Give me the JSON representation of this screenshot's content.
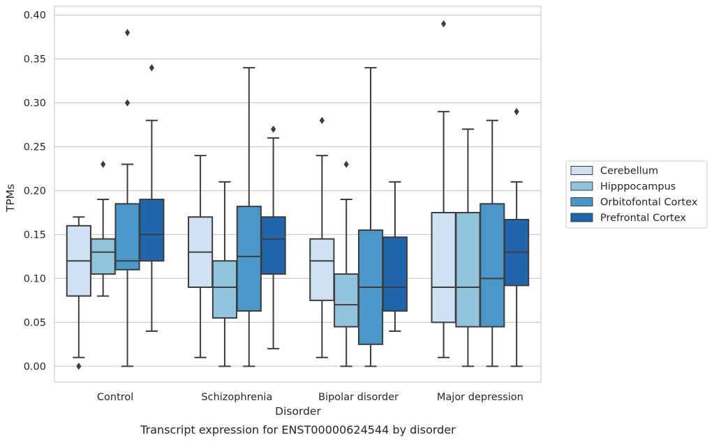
{
  "chart_data": {
    "type": "box",
    "title": "",
    "caption": "Transcript expression for ENST00000624544 by disorder",
    "xlabel": "Disorder",
    "ylabel": "TPMs",
    "ylim": [
      -0.018,
      0.41
    ],
    "yticks": [
      0.0,
      0.05,
      0.1,
      0.15,
      0.2,
      0.25,
      0.3,
      0.35,
      0.4
    ],
    "ytick_labels": [
      "0.00",
      "0.05",
      "0.10",
      "0.15",
      "0.20",
      "0.25",
      "0.30",
      "0.35",
      "0.40"
    ],
    "grid": "horizontal",
    "legend_placement": "center-right outside",
    "categories": [
      "Control",
      "Schizophrenia",
      "Bipolar disorder",
      "Major depression"
    ],
    "series": [
      {
        "name": "Cerebellum",
        "color": "#cfe1f2",
        "boxes": [
          {
            "whisker_low": 0.01,
            "q1": 0.08,
            "median": 0.12,
            "q3": 0.16,
            "whisker_high": 0.17,
            "outliers": [
              0.0
            ]
          },
          {
            "whisker_low": 0.01,
            "q1": 0.09,
            "median": 0.13,
            "q3": 0.17,
            "whisker_high": 0.24,
            "outliers": []
          },
          {
            "whisker_low": 0.01,
            "q1": 0.075,
            "median": 0.12,
            "q3": 0.145,
            "whisker_high": 0.24,
            "outliers": [
              0.28
            ]
          },
          {
            "whisker_low": 0.01,
            "q1": 0.05,
            "median": 0.09,
            "q3": 0.175,
            "whisker_high": 0.29,
            "outliers": [
              0.39
            ]
          }
        ]
      },
      {
        "name": "Hipppocampus",
        "color": "#93c4de",
        "boxes": [
          {
            "whisker_low": 0.08,
            "q1": 0.105,
            "median": 0.13,
            "q3": 0.145,
            "whisker_high": 0.19,
            "outliers": [
              0.23
            ]
          },
          {
            "whisker_low": 0.0,
            "q1": 0.055,
            "median": 0.09,
            "q3": 0.12,
            "whisker_high": 0.21,
            "outliers": []
          },
          {
            "whisker_low": 0.0,
            "q1": 0.045,
            "median": 0.07,
            "q3": 0.105,
            "whisker_high": 0.19,
            "outliers": [
              0.23
            ]
          },
          {
            "whisker_low": 0.0,
            "q1": 0.045,
            "median": 0.09,
            "q3": 0.175,
            "whisker_high": 0.27,
            "outliers": []
          }
        ]
      },
      {
        "name": "Orbitofontal Cortex",
        "color": "#4a98c9",
        "boxes": [
          {
            "whisker_low": 0.0,
            "q1": 0.11,
            "median": 0.12,
            "q3": 0.185,
            "whisker_high": 0.23,
            "outliers": [
              0.3,
              0.38
            ]
          },
          {
            "whisker_low": 0.0,
            "q1": 0.063,
            "median": 0.125,
            "q3": 0.182,
            "whisker_high": 0.34,
            "outliers": []
          },
          {
            "whisker_low": 0.0,
            "q1": 0.025,
            "median": 0.09,
            "q3": 0.155,
            "whisker_high": 0.34,
            "outliers": []
          },
          {
            "whisker_low": 0.0,
            "q1": 0.045,
            "median": 0.1,
            "q3": 0.185,
            "whisker_high": 0.28,
            "outliers": []
          }
        ]
      },
      {
        "name": "Prefrontal Cortex",
        "color": "#2166ac",
        "boxes": [
          {
            "whisker_low": 0.04,
            "q1": 0.12,
            "median": 0.15,
            "q3": 0.19,
            "whisker_high": 0.28,
            "outliers": [
              0.34
            ]
          },
          {
            "whisker_low": 0.02,
            "q1": 0.105,
            "median": 0.145,
            "q3": 0.17,
            "whisker_high": 0.26,
            "outliers": [
              0.27
            ]
          },
          {
            "whisker_low": 0.04,
            "q1": 0.063,
            "median": 0.09,
            "q3": 0.147,
            "whisker_high": 0.21,
            "outliers": []
          },
          {
            "whisker_low": 0.0,
            "q1": 0.092,
            "median": 0.13,
            "q3": 0.167,
            "whisker_high": 0.21,
            "outliers": [
              0.29
            ]
          }
        ]
      }
    ]
  }
}
